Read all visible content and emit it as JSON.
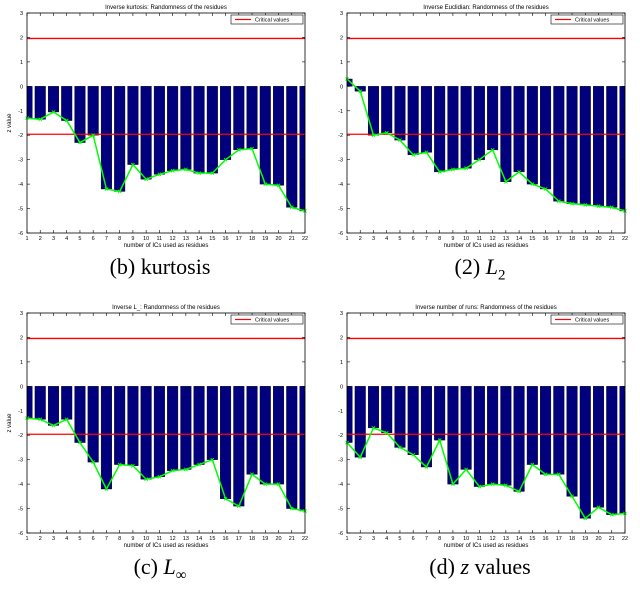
{
  "colors": {
    "bar": "#00007f",
    "line": "#00ff00",
    "critical": "#ff0000",
    "axis": "#000000"
  },
  "chart_data": [
    {
      "type": "bar",
      "title": "Inverse kurtosis: Randomness of the residues",
      "xlabel": "number of ICs used as residues",
      "ylabel": "z value",
      "legend": "Critical values",
      "legend_position": "top-right",
      "caption_prefix": "(b)",
      "caption_main": "kurtosis",
      "caption_sub": "",
      "caption_tail": "",
      "x": [
        1,
        2,
        3,
        4,
        5,
        6,
        7,
        8,
        9,
        10,
        11,
        12,
        13,
        14,
        15,
        16,
        17,
        18,
        19,
        20,
        21,
        22
      ],
      "values": [
        -1.3,
        -1.35,
        -1.05,
        -1.4,
        -2.3,
        -2.0,
        -4.2,
        -4.3,
        -3.2,
        -3.8,
        -3.6,
        -3.45,
        -3.4,
        -3.55,
        -3.55,
        -3.0,
        -2.6,
        -2.55,
        -4.0,
        -4.05,
        -4.95,
        -5.1
      ],
      "critical": [
        1.96,
        -1.96
      ],
      "xlim": [
        1,
        22
      ],
      "ylim": [
        -6,
        3
      ],
      "yticks": [
        -6,
        -5,
        -4,
        -3,
        -2,
        -1,
        0,
        1,
        2,
        3
      ],
      "xticks": [
        1,
        2,
        3,
        4,
        5,
        6,
        7,
        8,
        9,
        10,
        11,
        12,
        13,
        14,
        15,
        16,
        17,
        18,
        19,
        20,
        21,
        22
      ]
    },
    {
      "type": "bar",
      "title": "Inverse Euclidian: Randomness of the residues",
      "xlabel": "number of ICs used as residues",
      "ylabel": "",
      "legend": "Critical values",
      "legend_position": "top-right",
      "caption_prefix": "(2)",
      "caption_main": "L",
      "caption_sub": "2",
      "caption_tail": "",
      "x": [
        1,
        2,
        3,
        4,
        5,
        6,
        7,
        8,
        9,
        10,
        11,
        12,
        13,
        14,
        15,
        16,
        17,
        18,
        19,
        20,
        21,
        22
      ],
      "values": [
        0.3,
        -0.2,
        -2.0,
        -1.9,
        -2.2,
        -2.8,
        -2.7,
        -3.5,
        -3.4,
        -3.35,
        -3.0,
        -2.6,
        -3.9,
        -3.5,
        -4.0,
        -4.2,
        -4.7,
        -4.8,
        -4.85,
        -4.9,
        -4.95,
        -5.1
      ],
      "critical": [
        1.96,
        -1.96
      ],
      "xlim": [
        1,
        22
      ],
      "ylim": [
        -6,
        3
      ],
      "yticks": [
        -6,
        -5,
        -4,
        -3,
        -2,
        -1,
        0,
        1,
        2,
        3
      ],
      "xticks": [
        1,
        2,
        3,
        4,
        5,
        6,
        7,
        8,
        9,
        10,
        11,
        12,
        13,
        14,
        15,
        16,
        17,
        18,
        19,
        20,
        21,
        22
      ]
    },
    {
      "type": "bar",
      "title": "Inverse L_: Randomness of the residues",
      "xlabel": "number of ICs used as residues",
      "ylabel": "z value",
      "legend": "Critical values",
      "legend_position": "top-right",
      "caption_prefix": "(c)",
      "caption_main": "L",
      "caption_sub": "∞",
      "caption_tail": "",
      "x": [
        1,
        2,
        3,
        4,
        5,
        6,
        7,
        8,
        9,
        10,
        11,
        12,
        13,
        14,
        15,
        16,
        17,
        18,
        19,
        20,
        21,
        22
      ],
      "values": [
        -1.3,
        -1.35,
        -1.6,
        -1.35,
        -2.3,
        -3.1,
        -4.2,
        -3.2,
        -3.25,
        -3.8,
        -3.7,
        -3.45,
        -3.4,
        -3.2,
        -3.0,
        -4.6,
        -4.9,
        -3.6,
        -4.0,
        -4.0,
        -5.0,
        -5.1
      ],
      "critical": [
        1.96,
        -1.96
      ],
      "xlim": [
        1,
        22
      ],
      "ylim": [
        -6,
        3
      ],
      "yticks": [
        -6,
        -5,
        -4,
        -3,
        -2,
        -1,
        0,
        1,
        2,
        3
      ],
      "xticks": [
        1,
        2,
        3,
        4,
        5,
        6,
        7,
        8,
        9,
        10,
        11,
        12,
        13,
        14,
        15,
        16,
        17,
        18,
        19,
        20,
        21,
        22
      ]
    },
    {
      "type": "bar",
      "title": "Inverse number of runs: Randomness of the residues",
      "xlabel": "number of ICs used as residues",
      "ylabel": "",
      "legend": "Critical values",
      "legend_position": "top-right",
      "caption_prefix": "(d)",
      "caption_main": "z",
      "caption_sub": "",
      "caption_tail": "values",
      "x": [
        1,
        2,
        3,
        4,
        5,
        6,
        7,
        8,
        9,
        10,
        11,
        12,
        13,
        14,
        15,
        16,
        17,
        18,
        19,
        20,
        21,
        22
      ],
      "values": [
        -2.3,
        -2.9,
        -1.7,
        -1.9,
        -2.5,
        -2.8,
        -3.3,
        -2.2,
        -4.0,
        -3.4,
        -4.1,
        -4.0,
        -4.05,
        -4.3,
        -3.2,
        -3.6,
        -3.6,
        -4.5,
        -5.4,
        -4.95,
        -5.25,
        -5.2
      ],
      "critical": [
        1.96,
        -1.96
      ],
      "xlim": [
        1,
        22
      ],
      "ylim": [
        -6,
        3
      ],
      "yticks": [
        -6,
        -5,
        -4,
        -3,
        -2,
        -1,
        0,
        1,
        2,
        3
      ],
      "xticks": [
        1,
        2,
        3,
        4,
        5,
        6,
        7,
        8,
        9,
        10,
        11,
        12,
        13,
        14,
        15,
        16,
        17,
        18,
        19,
        20,
        21,
        22
      ]
    }
  ]
}
